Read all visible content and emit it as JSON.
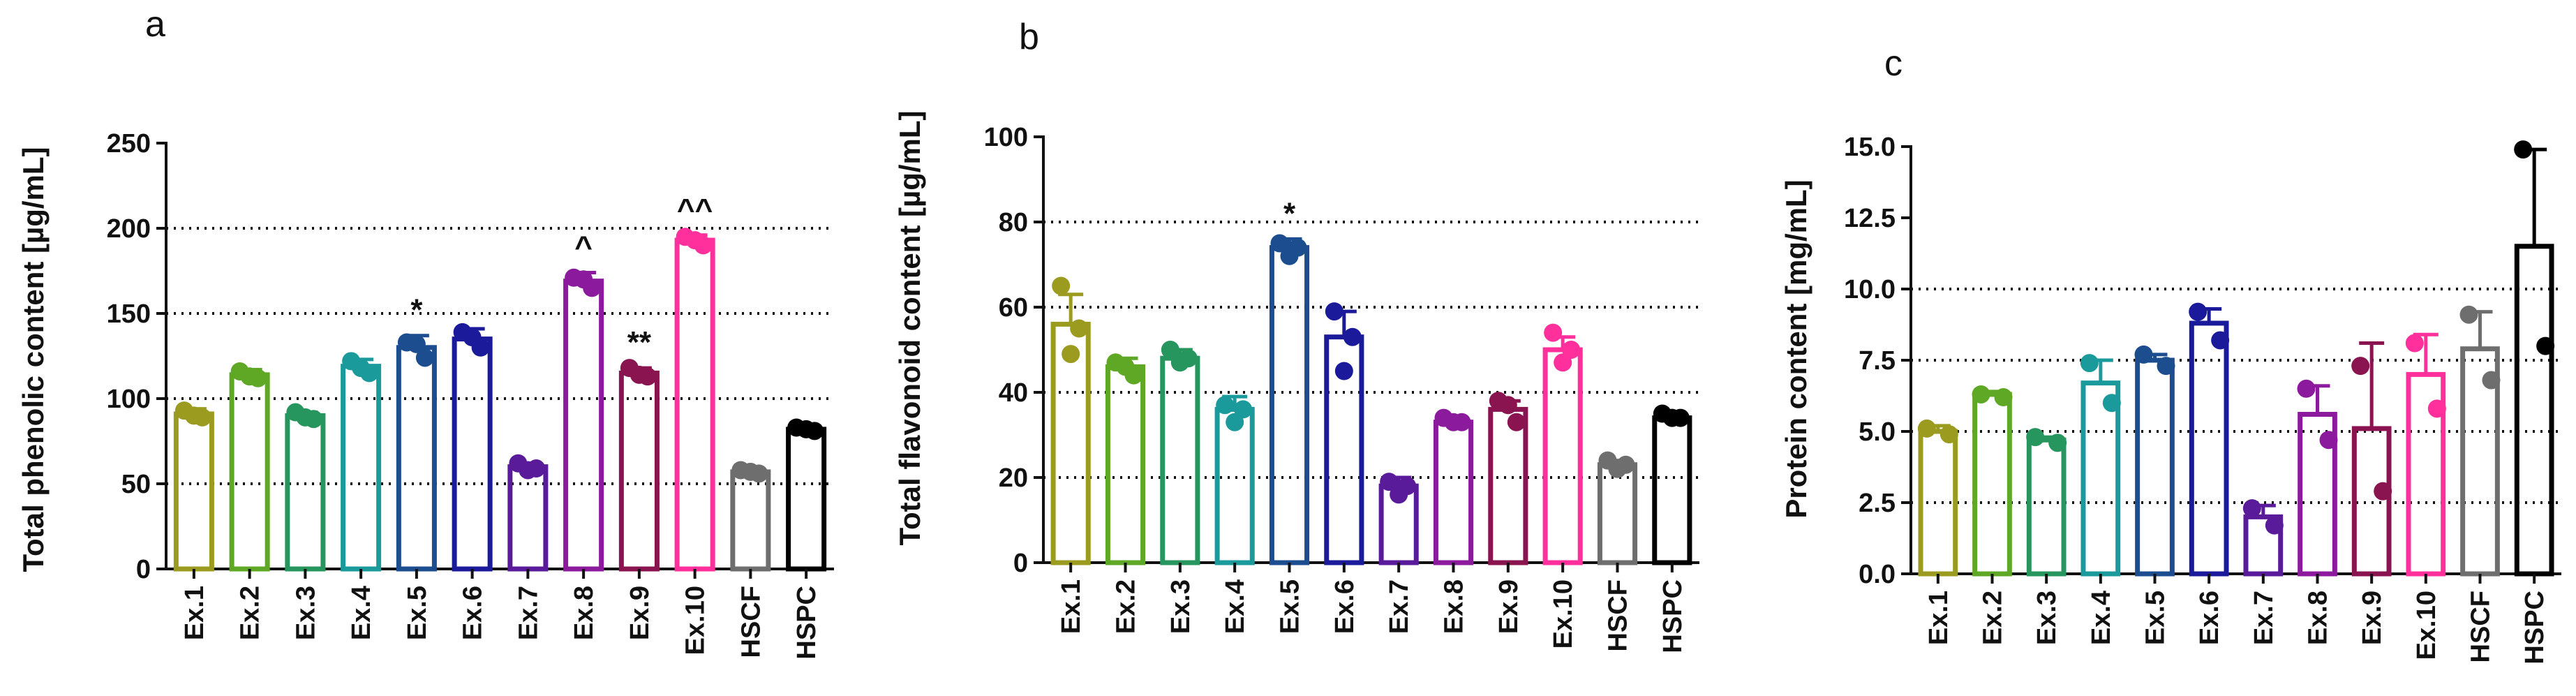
{
  "chart_data": [
    {
      "panel": "a",
      "type": "bar",
      "ylabel": "Total phenolic content [µg/mL]",
      "ylim": [
        0,
        250
      ],
      "yticks": [
        0,
        50,
        100,
        150,
        200,
        250
      ],
      "ytick_labels": [
        "0",
        "50",
        "100",
        "150",
        "200",
        "250"
      ],
      "gridlines": [
        50,
        100,
        150,
        200
      ],
      "categories": [
        "Ex.1",
        "Ex.2",
        "Ex.3",
        "Ex.4",
        "Ex.5",
        "Ex.6",
        "Ex.7",
        "Ex.8",
        "Ex.9",
        "Ex.10",
        "HSCF",
        "HSPC"
      ],
      "values": [
        91,
        114,
        90,
        119,
        130,
        135,
        60,
        169,
        115,
        193,
        57,
        82
      ],
      "errors": [
        3,
        3,
        2,
        4,
        7,
        6,
        2,
        5,
        3,
        3,
        2,
        2
      ],
      "points": [
        [
          93,
          89,
          90
        ],
        [
          116,
          112,
          113
        ],
        [
          92,
          88,
          89
        ],
        [
          122,
          115,
          118
        ],
        [
          133,
          124,
          132
        ],
        [
          139,
          130,
          136
        ],
        [
          62,
          59,
          58
        ],
        [
          171,
          165,
          170
        ],
        [
          118,
          113,
          114
        ],
        [
          195,
          190,
          193
        ],
        [
          58,
          56,
          57
        ],
        [
          83,
          81,
          82
        ]
      ],
      "annotations": [
        {
          "category": "Ex.5",
          "text": "*"
        },
        {
          "category": "Ex.8",
          "text": "^"
        },
        {
          "category": "Ex.9",
          "text": "**"
        },
        {
          "category": "Ex.10",
          "text": "^^"
        }
      ]
    },
    {
      "panel": "b",
      "type": "bar",
      "ylabel": "Total flavonoid content [µg/mL]",
      "ylim": [
        0,
        100
      ],
      "yticks": [
        0,
        20,
        40,
        60,
        80,
        100
      ],
      "ytick_labels": [
        "0",
        "20",
        "40",
        "60",
        "80",
        "100"
      ],
      "gridlines": [
        20,
        40,
        60,
        80
      ],
      "categories": [
        "Ex.1",
        "Ex.2",
        "Ex.3",
        "Ex.4",
        "Ex.5",
        "Ex.6",
        "Ex.7",
        "Ex.8",
        "Ex.9",
        "Ex.10",
        "HSCF",
        "HSPC"
      ],
      "values": [
        56,
        46,
        48,
        36,
        74,
        53,
        18,
        33,
        36,
        50,
        23,
        34
      ],
      "errors": [
        7,
        2,
        2,
        3,
        2,
        6,
        2,
        1,
        2,
        3,
        1,
        1
      ],
      "points": [
        [
          65,
          55,
          49
        ],
        [
          47,
          44,
          46
        ],
        [
          50,
          48,
          47
        ],
        [
          37,
          36,
          33
        ],
        [
          75,
          74,
          72
        ],
        [
          59,
          53,
          45
        ],
        [
          19,
          18,
          16
        ],
        [
          34,
          33,
          33
        ],
        [
          38,
          33,
          37
        ],
        [
          54,
          50,
          47
        ],
        [
          24,
          23,
          22
        ],
        [
          35,
          34,
          34
        ]
      ],
      "annotations": [
        {
          "category": "Ex.5",
          "text": "*"
        }
      ]
    },
    {
      "panel": "c",
      "type": "bar",
      "ylabel": "Protein content [mg/mL]",
      "ylim": [
        0,
        15
      ],
      "yticks": [
        0,
        2.5,
        5,
        7.5,
        10,
        12.5,
        15
      ],
      "ytick_labels": [
        "0.0",
        "2.5",
        "5.0",
        "7.5",
        "10.0",
        "12.5",
        "15.0"
      ],
      "gridlines": [
        2.5,
        5,
        7.5,
        10
      ],
      "categories": [
        "Ex.1",
        "Ex.2",
        "Ex.3",
        "Ex.4",
        "Ex.5",
        "Ex.6",
        "Ex.7",
        "Ex.8",
        "Ex.9",
        "Ex.10",
        "HSCF",
        "HSPC"
      ],
      "values": [
        5.0,
        6.3,
        4.7,
        6.7,
        7.5,
        8.8,
        2.0,
        5.6,
        5.1,
        7.0,
        7.9,
        11.5
      ],
      "errors": [
        0.2,
        0.1,
        0.1,
        0.8,
        0.2,
        0.5,
        0.4,
        1.0,
        3.0,
        1.4,
        1.3,
        3.4
      ],
      "points": [
        [
          5.1,
          4.9
        ],
        [
          6.3,
          6.2
        ],
        [
          4.8,
          4.6
        ],
        [
          7.4,
          6.0
        ],
        [
          7.7,
          7.3
        ],
        [
          9.2,
          8.2
        ],
        [
          2.3,
          1.7
        ],
        [
          6.5,
          4.7
        ],
        [
          7.3,
          2.9
        ],
        [
          8.1,
          5.8
        ],
        [
          9.1,
          6.8
        ],
        [
          14.9,
          8.0
        ]
      ]
    }
  ],
  "panels": [
    {
      "letter": "a"
    },
    {
      "letter": "b"
    },
    {
      "letter": "c"
    }
  ],
  "colors": [
    "#9b9b1f",
    "#5fa826",
    "#27965e",
    "#1b9a9c",
    "#1c4d8f",
    "#1a1a9a",
    "#5a1b9a",
    "#8c1a9c",
    "#8a1450",
    "#ff2f9c",
    "#6e6e6e",
    "#000000"
  ]
}
